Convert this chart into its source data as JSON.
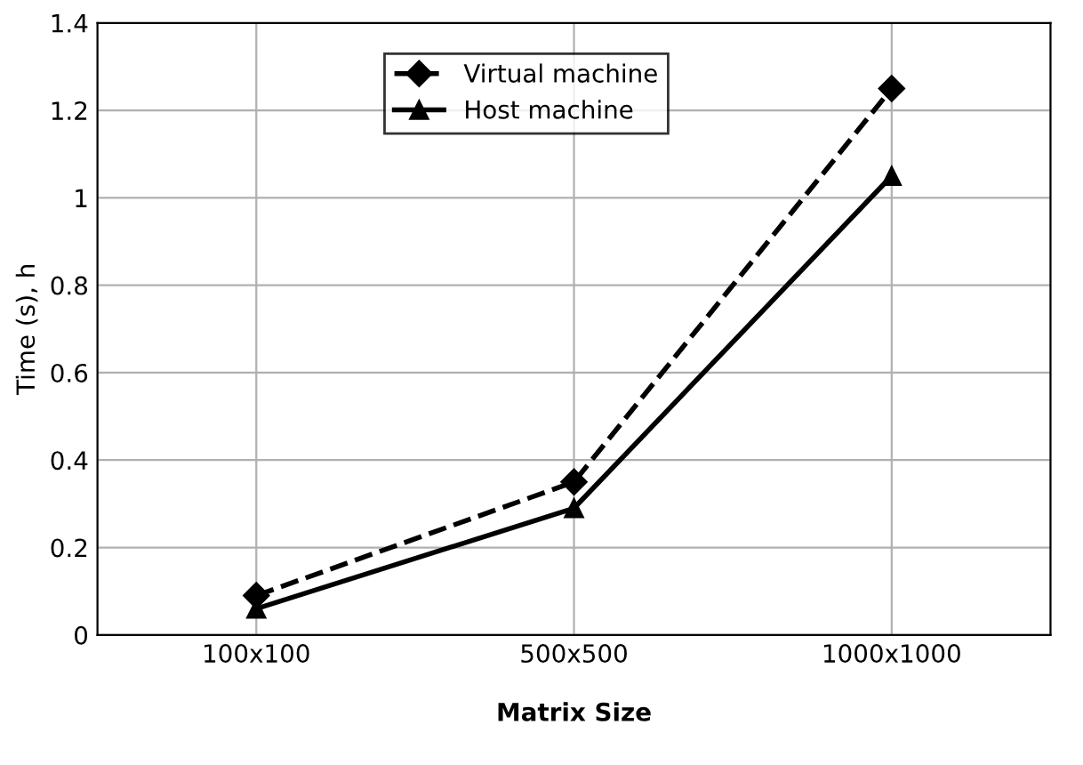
{
  "chart_data": {
    "type": "line",
    "xlabel": "Matrix Size",
    "ylabel": "Time (s), h",
    "categories": [
      "100x100",
      "500x500",
      "1000x1000"
    ],
    "series": [
      {
        "name": "Virtual machine",
        "color": "#000000",
        "values": [
          0.09,
          0.35,
          1.25
        ],
        "marker": "diamond",
        "line_style": "dashed"
      },
      {
        "name": "Host machine",
        "color": "#000000",
        "values": [
          0.06,
          0.29,
          1.05
        ],
        "marker": "triangle",
        "line_style": "solid"
      }
    ],
    "ylim": [
      0,
      1.4
    ],
    "yticks": [
      0,
      0.2,
      0.4,
      0.6,
      0.8,
      1,
      1.2,
      1.4
    ],
    "grid": true,
    "legend": "top"
  }
}
